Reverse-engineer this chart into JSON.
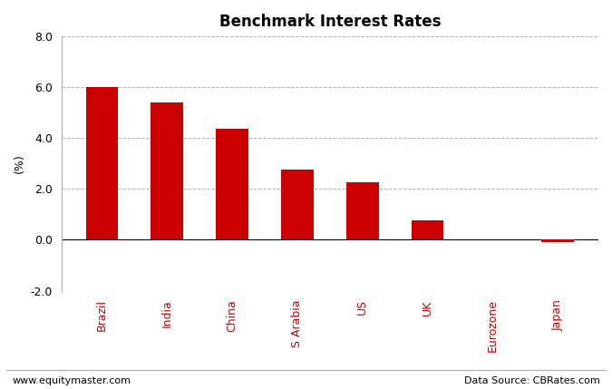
{
  "title": "Benchmark Interest Rates",
  "categories": [
    "Brazil",
    "India",
    "China",
    "S Arabia",
    "US",
    "UK",
    "Eurozone",
    "Japan"
  ],
  "values": [
    6.0,
    5.4,
    4.35,
    2.75,
    2.25,
    0.75,
    0.0,
    -0.1
  ],
  "bar_color": "#cc0000",
  "ylabel": "(%)",
  "ylim": [
    -2.0,
    8.0
  ],
  "yticks": [
    -2.0,
    0.0,
    2.0,
    4.0,
    6.0,
    8.0
  ],
  "background_color": "#ffffff",
  "grid_color": "#b0b0b0",
  "title_fontsize": 12,
  "axis_label_fontsize": 9,
  "tick_label_fontsize": 9,
  "footer_left": "www.equitymaster.com",
  "footer_right": "Data Source: CBRates.com",
  "footer_fontsize": 8,
  "x_label_color": "#cc0000",
  "bar_width": 0.5
}
